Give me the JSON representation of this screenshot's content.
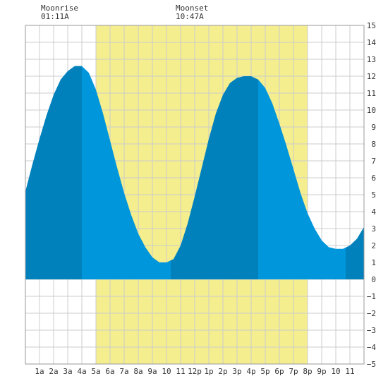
{
  "moon": {
    "rise_label": "Moonrise",
    "rise_time": "01:11A",
    "set_label": "Moonset",
    "set_time": "10:47A"
  },
  "chart_data": {
    "type": "area",
    "title": "",
    "xlabel": "",
    "ylabel": "",
    "xlim": [
      0,
      24
    ],
    "ylim": [
      -5,
      15
    ],
    "y_ticks": [
      -5,
      -4,
      -3,
      -2,
      -1,
      0,
      1,
      2,
      3,
      4,
      5,
      6,
      7,
      8,
      9,
      10,
      11,
      12,
      13,
      14,
      15
    ],
    "x_tick_labels": [
      {
        "x": 1,
        "label": "1a"
      },
      {
        "x": 2,
        "label": "2a"
      },
      {
        "x": 3,
        "label": "3a"
      },
      {
        "x": 4,
        "label": "4a"
      },
      {
        "x": 5,
        "label": "5a"
      },
      {
        "x": 6,
        "label": "6a"
      },
      {
        "x": 7,
        "label": "7a"
      },
      {
        "x": 8,
        "label": "8a"
      },
      {
        "x": 9,
        "label": "9a"
      },
      {
        "x": 10,
        "label": "10"
      },
      {
        "x": 11,
        "label": "11"
      },
      {
        "x": 12,
        "label": "12p"
      },
      {
        "x": 13,
        "label": "1p"
      },
      {
        "x": 14,
        "label": "2p"
      },
      {
        "x": 15,
        "label": "3p"
      },
      {
        "x": 16,
        "label": "4p"
      },
      {
        "x": 17,
        "label": "5p"
      },
      {
        "x": 18,
        "label": "6p"
      },
      {
        "x": 19,
        "label": "7p"
      },
      {
        "x": 20,
        "label": "8p"
      },
      {
        "x": 21,
        "label": "9p"
      },
      {
        "x": 22,
        "label": "10"
      },
      {
        "x": 23,
        "label": "11"
      }
    ],
    "grid": true,
    "daylight": [
      5,
      20
    ],
    "tide_extremes": [
      {
        "time": 4,
        "height": 12.6
      },
      {
        "time": 10.25,
        "height": 1.0
      },
      {
        "time": 16.5,
        "height": 12.0
      },
      {
        "time": 22.7,
        "height": 1.8
      }
    ],
    "series": [
      {
        "x": [
          0,
          0.5,
          1,
          1.5,
          2,
          2.5,
          3,
          3.5,
          4,
          4.5,
          5,
          5.5,
          6,
          6.5,
          7,
          7.5,
          8,
          8.5,
          9,
          9.5,
          10,
          10.5,
          11,
          11.5,
          12,
          12.5,
          13,
          13.5,
          14,
          14.5,
          15,
          15.5,
          16,
          16.5,
          17,
          17.5,
          18,
          18.5,
          19,
          19.5,
          20,
          20.5,
          21,
          21.5,
          22,
          22.5,
          23,
          23.5,
          24
        ],
        "y": [
          5.2,
          6.8,
          8.3,
          9.7,
          10.9,
          11.8,
          12.3,
          12.6,
          12.6,
          12.2,
          11.2,
          9.8,
          8.2,
          6.6,
          5.1,
          3.8,
          2.7,
          1.9,
          1.3,
          1.0,
          1.0,
          1.2,
          2.0,
          3.3,
          4.9,
          6.6,
          8.3,
          9.8,
          10.9,
          11.6,
          11.9,
          12.0,
          12.0,
          11.8,
          11.3,
          10.4,
          9.2,
          7.9,
          6.5,
          5.1,
          3.9,
          3.0,
          2.3,
          1.9,
          1.8,
          1.8,
          2.0,
          2.4,
          3.1
        ]
      }
    ],
    "shading_bands": [
      {
        "from": 0,
        "to": 4,
        "tone": "dark"
      },
      {
        "from": 4,
        "to": 10.3,
        "tone": "light"
      },
      {
        "from": 10.3,
        "to": 16.5,
        "tone": "dark"
      },
      {
        "from": 16.5,
        "to": 22.7,
        "tone": "light"
      },
      {
        "from": 22.7,
        "to": 24,
        "tone": "dark"
      }
    ],
    "colors": {
      "daylight": "#f5ee8e",
      "tide_light": "#0096dc",
      "tide_dark": "#0081bc",
      "grid": "#cccccc",
      "frame": "#999999"
    }
  }
}
